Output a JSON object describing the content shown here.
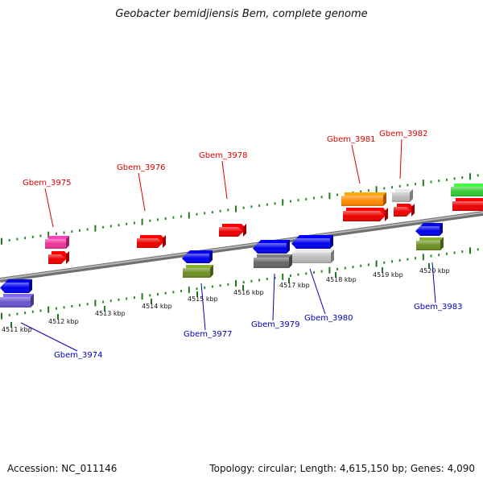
{
  "title": "Geobacter bemidjiensis Bem, complete genome",
  "footer": {
    "accession_label": "Accession:",
    "accession_value": "NC_011146",
    "topology_text": "Topology: circular; Length: 4,615,150 bp; Genes: 4,090"
  },
  "colors": {
    "backbone": "#8c8c8c",
    "tick_major": "#1d7a1d",
    "tick_minor": "#2a8a2a",
    "label_top": "#dd0000",
    "label_bottom": "#0000bb",
    "scale_text": "#111111"
  },
  "scale": {
    "unit": "kbp",
    "ticks": [
      "4511 kbp",
      "4512 kbp",
      "4513 kbp",
      "4514 kbp",
      "4515 kbp",
      "4516 kbp",
      "4517 kbp",
      "4518 kbp",
      "4519 kbp",
      "4520 kbp"
    ]
  },
  "genes": [
    {
      "name": "Gbem_3975",
      "strand": "top",
      "feature_color": "#ee3399",
      "feature_kind": "rna-gene",
      "has_label": true
    },
    {
      "name": "Gbem_3976",
      "strand": "top",
      "feature_color": "#ee0000",
      "has_label": true
    },
    {
      "name": "Gbem_3978",
      "strand": "top",
      "feature_color": "#ee0000",
      "has_label": true
    },
    {
      "name": "Gbem_3981",
      "strand": "top",
      "feature_color": "#ff8800",
      "feature_kind": "cds",
      "has_label": true
    },
    {
      "name": "Gbem_3982",
      "strand": "top",
      "feature_color": "#bbbbbb",
      "feature_kind": "cds",
      "has_label": true
    },
    {
      "name": "",
      "strand": "top",
      "feature_color": "#33cc33",
      "feature_kind": "cds",
      "has_label": false
    },
    {
      "name": "Gbem_3974",
      "strand": "bottom",
      "feature_color": "#0000ee",
      "feature_kind": "cds",
      "has_label": true
    },
    {
      "name": "Gbem_3977",
      "strand": "bottom",
      "feature_color": "#0000ee",
      "feature_kind": "cds",
      "has_label": true
    },
    {
      "name": "Gbem_3979",
      "strand": "bottom",
      "feature_color": "#0000ee",
      "feature_kind": "cds",
      "has_label": true
    },
    {
      "name": "Gbem_3980",
      "strand": "bottom",
      "feature_color": "#0000ee",
      "feature_kind": "cds",
      "has_label": true
    },
    {
      "name": "Gbem_3983",
      "strand": "bottom",
      "feature_color": "#0000ee",
      "feature_kind": "cds",
      "has_label": true
    }
  ]
}
